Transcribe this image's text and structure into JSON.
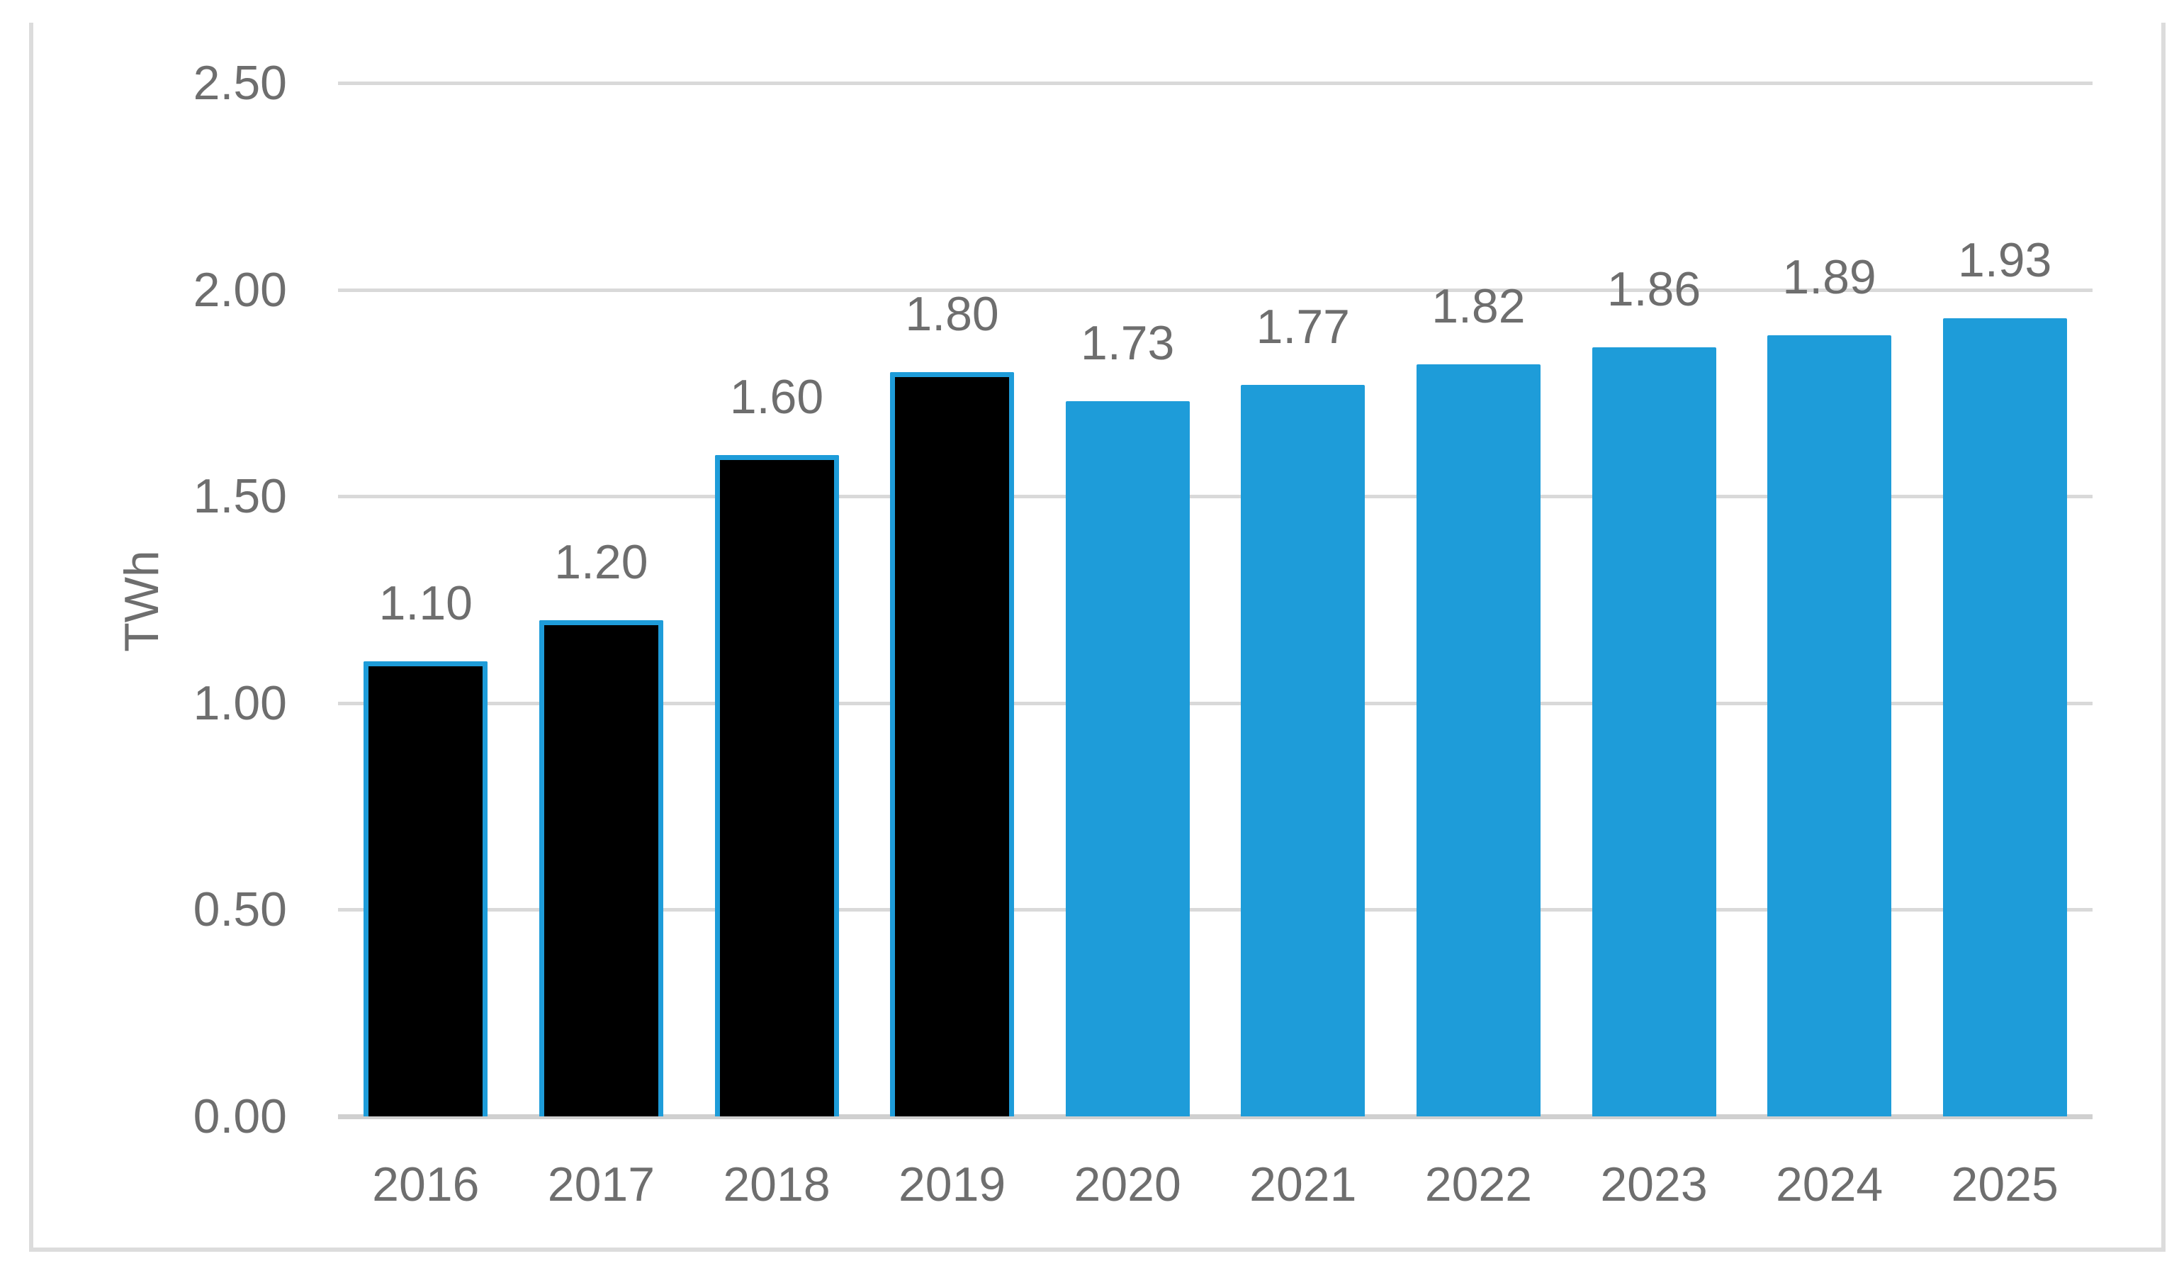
{
  "chart_data": {
    "type": "bar",
    "title": "",
    "ylabel": "TWh",
    "xlabel": "",
    "categories": [
      "2016",
      "2017",
      "2018",
      "2019",
      "2020",
      "2021",
      "2022",
      "2023",
      "2024",
      "2025"
    ],
    "values": [
      1.1,
      1.2,
      1.6,
      1.8,
      1.73,
      1.77,
      1.82,
      1.86,
      1.89,
      1.93
    ],
    "value_labels": [
      "1.10",
      "1.20",
      "1.60",
      "1.80",
      "1.73",
      "1.77",
      "1.82",
      "1.86",
      "1.89",
      "1.93"
    ],
    "historical_bar_count": 4,
    "ylim": [
      0.0,
      2.5
    ],
    "ytick_step": 0.5,
    "ytick_labels": [
      "2.50",
      "2.00",
      "1.50",
      "1.00",
      "0.50",
      "0.00"
    ],
    "grid": true,
    "legend": "none",
    "colors": {
      "historical_fill": "#000000",
      "historical_outline": "#1e9cd9",
      "forecast_fill": "#1e9cd9",
      "gridline": "#d9d9d9",
      "baseline": "#d0d0d0",
      "text": "#6e6e6e",
      "frame_border": "#dcdcdc"
    }
  }
}
